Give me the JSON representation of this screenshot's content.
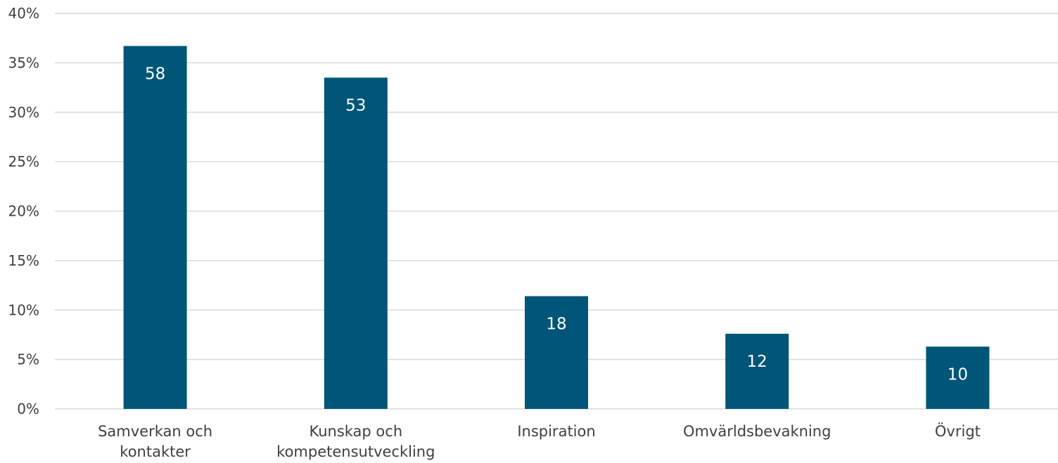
{
  "chart_data": {
    "type": "bar",
    "categories": [
      "Samverkan och kontakter",
      "Kunskap och kompetensutveckling",
      "Inspiration",
      "Omvärldsbevakning",
      "Övrigt"
    ],
    "category_lines": [
      [
        "Samverkan och",
        "kontakter"
      ],
      [
        "Kunskap och",
        "kompetensutveckling"
      ],
      [
        "Inspiration"
      ],
      [
        "Omvärldsbevakning"
      ],
      [
        "Övrigt"
      ]
    ],
    "values": [
      36.7,
      33.5,
      11.4,
      7.6,
      6.3
    ],
    "data_labels": [
      "58",
      "53",
      "18",
      "12",
      "10"
    ],
    "y_ticks": [
      "0%",
      "5%",
      "10%",
      "15%",
      "20%",
      "25%",
      "30%",
      "35%",
      "40%"
    ],
    "ylim": [
      0,
      40
    ],
    "y_unit": "%",
    "grid": true,
    "colors": {
      "bar": "#005678",
      "grid": "#d9d9d9",
      "axis_text": "#404040",
      "data_label": "#ffffff"
    }
  }
}
